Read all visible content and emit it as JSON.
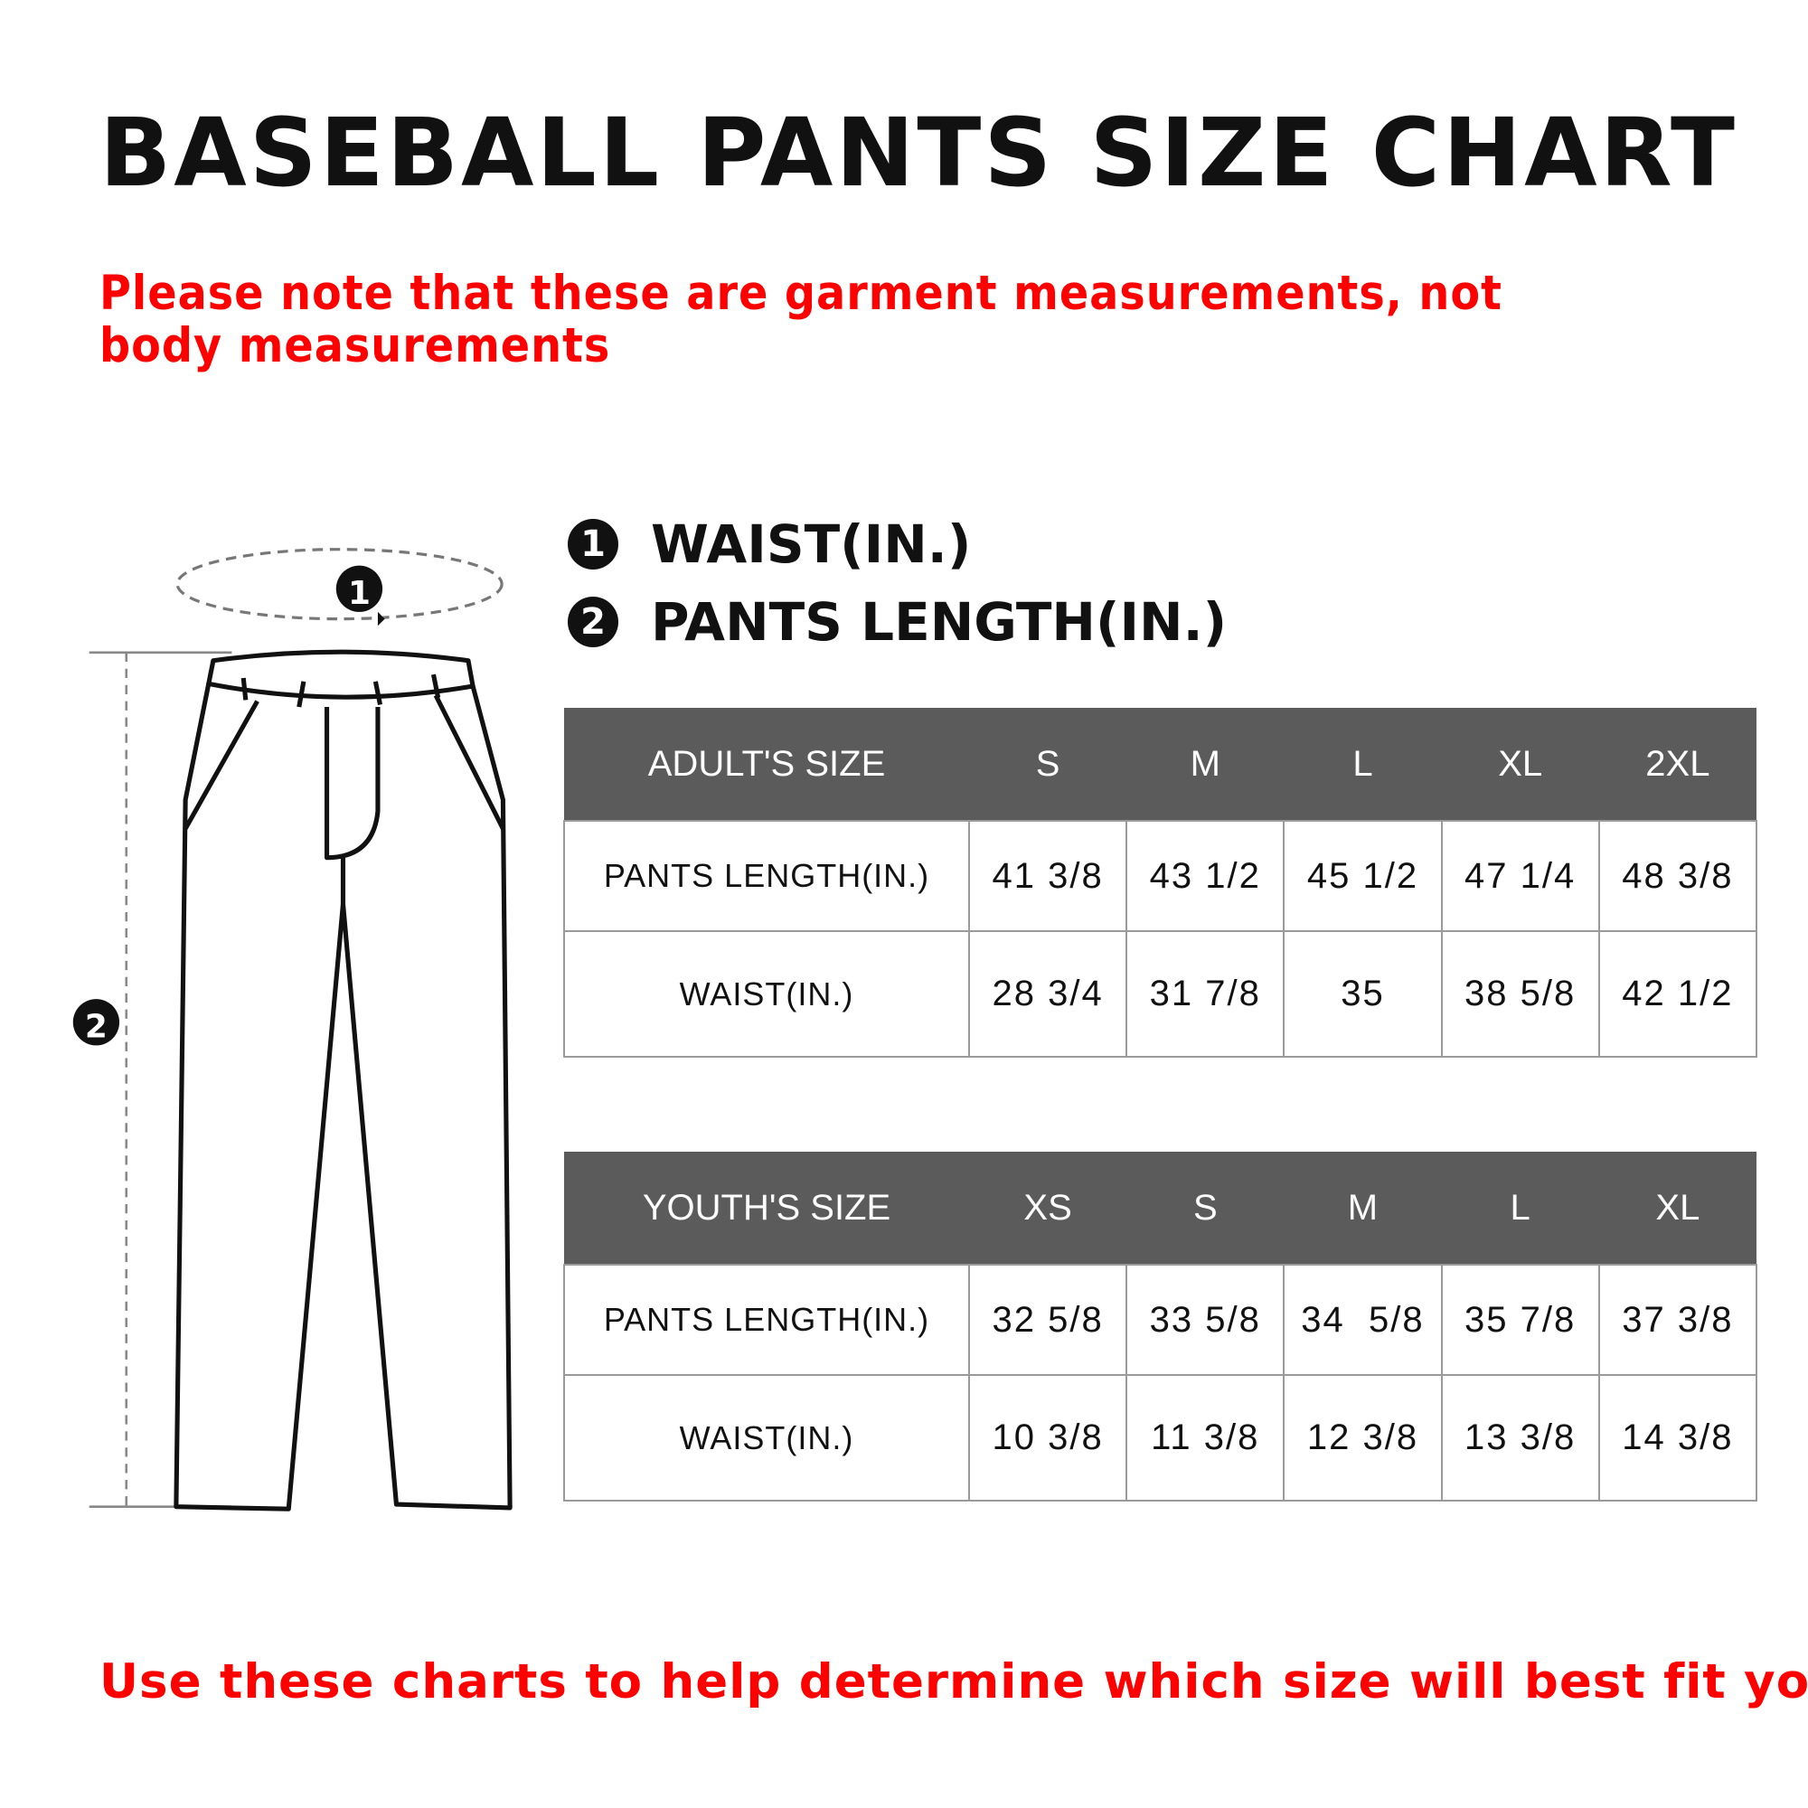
{
  "title": "BASEBALL PANTS SIZE CHART",
  "note": "Please note that these are garment measurements, not body measurements",
  "legend": [
    {
      "num": "1",
      "label": "WAIST(IN.)"
    },
    {
      "num": "2",
      "label": "PANTS LENGTH(IN.)"
    }
  ],
  "diagram": {
    "marker1": "1",
    "marker2": "2"
  },
  "adult": {
    "header": [
      "ADULT'S SIZE",
      "S",
      "M",
      "L",
      "XL",
      "2XL"
    ],
    "rows": [
      [
        "PANTS LENGTH(IN.)",
        "41 3/8",
        "43 1/2",
        "45 1/2",
        "47 1/4",
        "48 3/8"
      ],
      [
        "WAIST(IN.)",
        "28 3/4",
        "31 7/8",
        "35",
        "38 5/8",
        "42 1/2"
      ]
    ]
  },
  "youth": {
    "header": [
      "YOUTH'S SIZE",
      "XS",
      "S",
      "M",
      "L",
      "XL"
    ],
    "rows": [
      [
        "PANTS LENGTH(IN.)",
        "32 5/8",
        "33 5/8",
        "34  5/8",
        "35 7/8",
        "37 3/8"
      ],
      [
        "WAIST(IN.)",
        "10 3/8",
        "11 3/8",
        "12 3/8",
        "13 3/8",
        "14 3/8"
      ]
    ]
  },
  "footer": "Use these charts to help determine which size will best fit you",
  "colors": {
    "accent": "#ff0000",
    "header_bg": "#5b5b5b"
  }
}
